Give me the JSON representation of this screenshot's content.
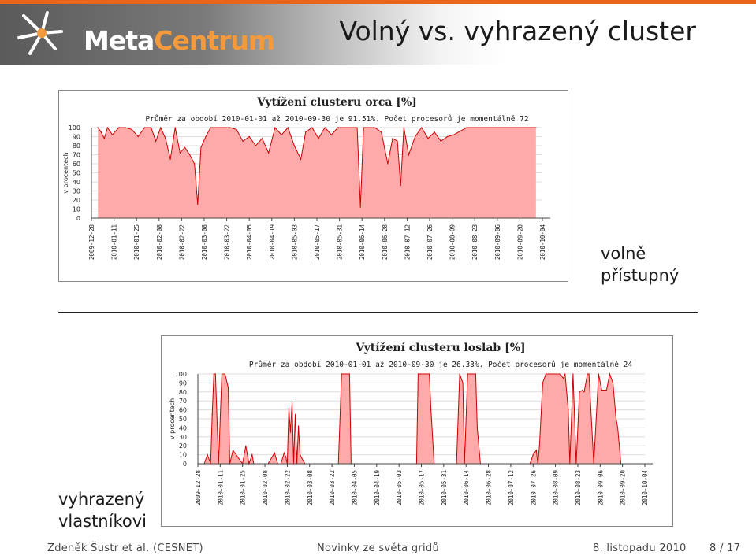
{
  "slide": {
    "title": "Volný vs. vyhrazený cluster",
    "logo": {
      "part1": "Meta",
      "part2": "Centrum"
    }
  },
  "labels": {
    "free_line1": "volně",
    "free_line2": "přístupný",
    "owned_line1": "vyhrazený",
    "owned_line2": "vlastníkovi"
  },
  "footer": {
    "author": "Zdeněk Šustr et al. (CESNET)",
    "talk": "Novinky ze světa gridů",
    "date": "8. listopadu 2010",
    "page": "8 / 17"
  },
  "colors": {
    "accent": "#e8651a",
    "fill": "#ffaaaa",
    "line": "#cc0000"
  },
  "chart_data": [
    {
      "type": "area",
      "title": "Vytížení clusteru orca [%]",
      "subtitle": "Průměr za období 2010-01-01 až 2010-09-30 je 91.51%. Počet procesorů je momentálně 72",
      "ylabel": "v procentech",
      "ylim": [
        0,
        100
      ],
      "yticks": [
        0,
        10,
        20,
        30,
        40,
        50,
        60,
        70,
        80,
        90,
        100
      ],
      "xticks": [
        "2009-12-28",
        "2010-01-11",
        "2010-01-25",
        "2010-02-08",
        "2010-02-22",
        "2010-03-08",
        "2010-03-22",
        "2010-04-05",
        "2010-04-19",
        "2010-05-03",
        "2010-05-17",
        "2010-05-31",
        "2010-06-14",
        "2010-06-28",
        "2010-07-12",
        "2010-07-26",
        "2010-08-09",
        "2010-08-23",
        "2010-09-06",
        "2010-09-20",
        "2010-10-04"
      ],
      "x": [
        "2010-01-01",
        "2010-01-03",
        "2010-01-05",
        "2010-01-07",
        "2010-01-10",
        "2010-01-14",
        "2010-01-18",
        "2010-01-22",
        "2010-01-26",
        "2010-01-30",
        "2010-02-03",
        "2010-02-06",
        "2010-02-09",
        "2010-02-12",
        "2010-02-15",
        "2010-02-18",
        "2010-02-21",
        "2010-02-24",
        "2010-02-27",
        "2010-03-02",
        "2010-03-04",
        "2010-03-06",
        "2010-03-09",
        "2010-03-12",
        "2010-03-16",
        "2010-03-20",
        "2010-03-24",
        "2010-03-28",
        "2010-04-01",
        "2010-04-05",
        "2010-04-09",
        "2010-04-13",
        "2010-04-17",
        "2010-04-21",
        "2010-04-25",
        "2010-04-29",
        "2010-05-03",
        "2010-05-07",
        "2010-05-10",
        "2010-05-14",
        "2010-05-18",
        "2010-05-22",
        "2010-05-26",
        "2010-05-30",
        "2010-06-03",
        "2010-06-07",
        "2010-06-11",
        "2010-06-13",
        "2010-06-15",
        "2010-06-18",
        "2010-06-22",
        "2010-06-26",
        "2010-06-30",
        "2010-07-03",
        "2010-07-06",
        "2010-07-08",
        "2010-07-10",
        "2010-07-13",
        "2010-07-17",
        "2010-07-21",
        "2010-07-25",
        "2010-07-29",
        "2010-08-02",
        "2010-08-06",
        "2010-08-10",
        "2010-08-14",
        "2010-08-18",
        "2010-08-22",
        "2010-08-26",
        "2010-08-30",
        "2010-09-03",
        "2010-09-07",
        "2010-09-11",
        "2010-09-15",
        "2010-09-19",
        "2010-09-23",
        "2010-09-27",
        "2010-09-30"
      ],
      "values": [
        100,
        95,
        88,
        100,
        92,
        100,
        100,
        98,
        90,
        100,
        100,
        85,
        100,
        88,
        65,
        100,
        72,
        78,
        70,
        60,
        15,
        78,
        90,
        100,
        100,
        100,
        100,
        98,
        85,
        90,
        80,
        88,
        72,
        100,
        92,
        100,
        80,
        65,
        95,
        100,
        88,
        100,
        92,
        100,
        100,
        100,
        100,
        12,
        100,
        100,
        100,
        95,
        60,
        88,
        85,
        36,
        100,
        70,
        90,
        100,
        88,
        95,
        85,
        90,
        92,
        96,
        100,
        100,
        100,
        100,
        100,
        100,
        100,
        100,
        100,
        100,
        100,
        100
      ]
    },
    {
      "type": "area",
      "title": "Vytížení clusteru loslab [%]",
      "subtitle": "Průměr za období 2010-01-01 až 2010-09-30 je 26.33%. Počet procesorů je momentálně 24",
      "ylabel": "v procentech",
      "ylim": [
        0,
        100
      ],
      "yticks": [
        0,
        10,
        20,
        30,
        40,
        50,
        60,
        70,
        80,
        90,
        100
      ],
      "xticks": [
        "2009-12-28",
        "2010-01-11",
        "2010-01-25",
        "2010-02-08",
        "2010-02-22",
        "2010-03-08",
        "2010-03-22",
        "2010-04-05",
        "2010-04-19",
        "2010-05-03",
        "2010-05-17",
        "2010-05-31",
        "2010-06-14",
        "2010-06-28",
        "2010-07-12",
        "2010-07-26",
        "2010-08-09",
        "2010-08-23",
        "2010-09-06",
        "2010-09-20",
        "2010-10-04"
      ],
      "x": [
        "2010-01-01",
        "2010-01-03",
        "2010-01-05",
        "2010-01-06",
        "2010-01-07",
        "2010-01-08",
        "2010-01-10",
        "2010-01-12",
        "2010-01-14",
        "2010-01-16",
        "2010-01-17",
        "2010-01-19",
        "2010-01-25",
        "2010-01-27",
        "2010-01-29",
        "2010-01-31",
        "2010-02-01",
        "2010-02-10",
        "2010-02-14",
        "2010-02-16",
        "2010-02-18",
        "2010-02-20",
        "2010-02-21",
        "2010-02-22",
        "2010-02-23",
        "2010-02-24",
        "2010-02-25",
        "2010-02-26",
        "2010-02-27",
        "2010-02-28",
        "2010-03-01",
        "2010-03-02",
        "2010-03-05",
        "2010-03-08",
        "2010-03-20",
        "2010-03-26",
        "2010-03-28",
        "2010-03-29",
        "2010-04-02",
        "2010-04-03",
        "2010-04-05",
        "2010-04-07",
        "2010-04-30",
        "2010-05-14",
        "2010-05-15",
        "2010-05-16",
        "2010-05-22",
        "2010-05-23",
        "2010-05-25",
        "2010-06-08",
        "2010-06-10",
        "2010-06-12",
        "2010-06-13",
        "2010-06-15",
        "2010-06-20",
        "2010-06-21",
        "2010-06-23",
        "2010-06-24",
        "2010-07-20",
        "2010-07-24",
        "2010-07-26",
        "2010-07-28",
        "2010-07-29",
        "2010-07-30",
        "2010-08-01",
        "2010-08-03",
        "2010-08-12",
        "2010-08-14",
        "2010-08-15",
        "2010-08-17",
        "2010-08-18",
        "2010-08-20",
        "2010-08-22",
        "2010-08-24",
        "2010-08-26",
        "2010-08-27",
        "2010-08-29",
        "2010-08-30",
        "2010-09-02",
        "2010-09-05",
        "2010-09-07",
        "2010-09-10",
        "2010-09-12",
        "2010-09-14",
        "2010-09-16",
        "2010-09-17",
        "2010-09-19",
        "2010-09-22",
        "2010-09-30"
      ],
      "values": [
        0,
        10,
        0,
        55,
        100,
        100,
        0,
        100,
        100,
        85,
        0,
        15,
        0,
        20,
        0,
        10,
        0,
        0,
        12,
        0,
        0,
        12,
        8,
        0,
        62,
        35,
        68,
        0,
        55,
        0,
        42,
        10,
        0,
        0,
        0,
        0,
        100,
        100,
        100,
        0,
        0,
        0,
        0,
        0,
        100,
        100,
        100,
        60,
        0,
        0,
        100,
        90,
        0,
        100,
        100,
        40,
        0,
        0,
        0,
        0,
        10,
        15,
        0,
        20,
        90,
        100,
        100,
        95,
        100,
        60,
        0,
        100,
        0,
        80,
        82,
        80,
        100,
        100,
        0,
        100,
        82,
        82,
        100,
        90,
        50,
        40,
        0,
        0,
        0
      ]
    }
  ]
}
